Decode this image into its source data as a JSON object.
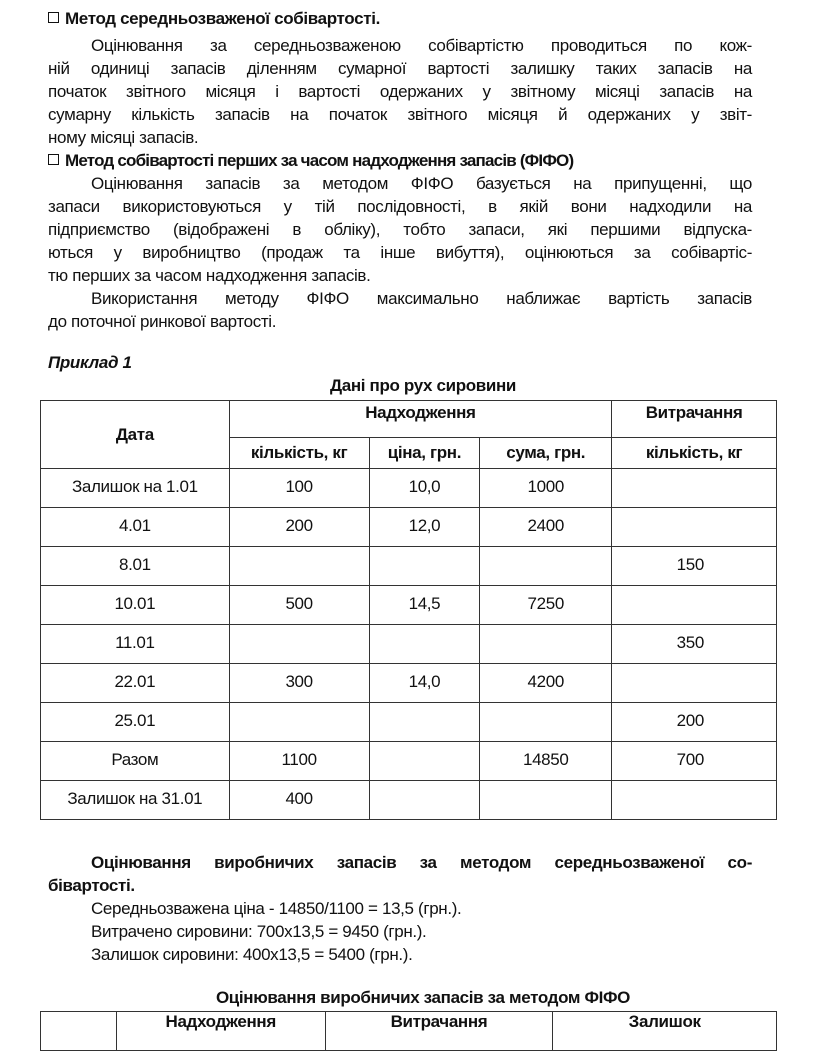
{
  "section1": {
    "heading": "Метод середньозваженої собівартості.",
    "lines": [
      "Оцінювання за середньозваженою собівартістю проводиться по кож-",
      "ній одиниці запасів діленням сумарної вартості залишку таких запасів на",
      "початок звітного місяця і вартості одержаних у звітному місяці запасів на",
      "сумарну кількість запасів на початок звітного місяця й одержаних у звіт-",
      "ному місяці запасів."
    ]
  },
  "section2": {
    "heading": "Метод собівартості перших за часом надходження запасів (ФІФО)",
    "lines": [
      "Оцінювання запасів за методом ФІФО базується на припущенні, що",
      "запаси використовуються у тій послідовності, в якій вони надходили на",
      "підприємство (відображені в обліку), тобто запаси, які першими відпуска-",
      "ються у виробництво (продаж та інше вибуття), оцінюються за собівартіс-",
      "тю перших за часом надходження запасів."
    ],
    "lines2": [
      "Використання методу ФІФО максимально наближає вартість запасів",
      "до поточної ринкової вартості."
    ]
  },
  "example": {
    "label": "Приклад 1",
    "table_title": "Дані про рух сировини",
    "headers": {
      "date": "Дата",
      "receipt": "Надходження",
      "consumption": "Витрачання",
      "qty": "кількість, кг",
      "price": "ціна, грн.",
      "sum": "сума, грн.",
      "cons_qty": "кількість, кг"
    },
    "rows": [
      [
        "Залишок  на 1.01",
        "100",
        "10,0",
        "1000",
        ""
      ],
      [
        "4.01",
        "200",
        "12,0",
        "2400",
        ""
      ],
      [
        "8.01",
        "",
        "",
        "",
        "150"
      ],
      [
        "10.01",
        "500",
        "14,5",
        "7250",
        ""
      ],
      [
        "11.01",
        "",
        "",
        "",
        "350"
      ],
      [
        "22.01",
        "300",
        "14,0",
        "4200",
        ""
      ],
      [
        "25.01",
        "",
        "",
        "",
        "200"
      ],
      [
        "Разом",
        "1100",
        "",
        "14850",
        "700"
      ],
      [
        "Залишок на 31.01",
        "400",
        "",
        "",
        ""
      ]
    ]
  },
  "weighted": {
    "heading_lines": [
      "Оцінювання виробничих запасів за методом середньозваженої со-",
      "бівартості."
    ],
    "calc": [
      "Середньозважена ціна - 14850/1100 = 13,5 (грн.).",
      "Витрачено сировини: 700х13,5 = 9450 (грн.).",
      "Залишок сировини: 400х13,5 = 5400 (грн.)."
    ]
  },
  "fifo": {
    "title": "Оцінювання виробничих запасів за методом ФІФО",
    "headers": [
      "",
      "Надходження",
      "Витрачання",
      "Залишок"
    ]
  }
}
